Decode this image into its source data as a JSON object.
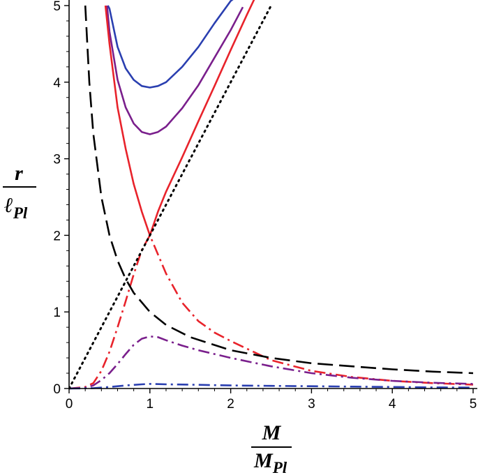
{
  "chart_data": {
    "type": "line",
    "title": "",
    "xlabel": {
      "numerator": "M",
      "denominator_base": "M",
      "denominator_sub": "Pl"
    },
    "ylabel": {
      "numerator": "r",
      "denominator_base": "ℓ",
      "denominator_sub": "Pl"
    },
    "xlim": [
      0,
      5
    ],
    "ylim": [
      0,
      5
    ],
    "x_ticks": [
      "0",
      "1",
      "2",
      "3",
      "4",
      "5"
    ],
    "y_ticks": [
      "0",
      "1",
      "2",
      "3",
      "4",
      "5"
    ],
    "grid": false,
    "legend": "none",
    "series": [
      {
        "style": "solid",
        "color": "#2a3fb0",
        "x": [
          0.48,
          0.5,
          0.6,
          0.7,
          0.8,
          0.9,
          1.0,
          1.1,
          1.2,
          1.4,
          1.6,
          1.8,
          2.0,
          2.05
        ],
        "y": [
          5.0,
          4.96,
          4.46,
          4.18,
          4.03,
          3.95,
          3.93,
          3.95,
          4.0,
          4.2,
          4.46,
          4.77,
          5.06,
          5.1
        ]
      },
      {
        "style": "solid",
        "color": "#7a1f8c",
        "x": [
          0.47,
          0.5,
          0.6,
          0.7,
          0.8,
          0.9,
          1.0,
          1.1,
          1.2,
          1.4,
          1.6,
          1.8,
          2.0,
          2.15
        ],
        "y": [
          5.0,
          4.66,
          4.03,
          3.67,
          3.46,
          3.35,
          3.32,
          3.35,
          3.42,
          3.66,
          3.96,
          4.32,
          4.68,
          4.98
        ]
      },
      {
        "style": "solid",
        "color": "#e8232b",
        "x": [
          0.45,
          0.5,
          0.6,
          0.7,
          0.8,
          0.9,
          1.0,
          1.1,
          1.2,
          1.4,
          1.6,
          1.8,
          2.0,
          2.2,
          2.3
        ],
        "y": [
          5.0,
          4.5,
          3.67,
          3.13,
          2.67,
          2.31,
          2.0,
          2.31,
          2.57,
          3.02,
          3.49,
          3.95,
          4.42,
          4.88,
          5.1
        ]
      },
      {
        "style": "dashdot",
        "color": "#e8232b",
        "x": [
          0.0,
          0.2,
          0.3,
          0.4,
          0.5,
          0.6,
          0.7,
          0.8,
          0.9,
          1.0,
          1.1,
          1.2,
          1.4,
          1.6,
          1.8,
          2.0,
          2.5,
          3.0,
          3.5,
          4.0,
          4.5,
          5.0
        ],
        "y": [
          0.0,
          0.02,
          0.07,
          0.23,
          0.48,
          0.8,
          1.14,
          1.49,
          1.81,
          2.0,
          1.75,
          1.5,
          1.12,
          0.88,
          0.73,
          0.62,
          0.37,
          0.23,
          0.15,
          0.1,
          0.07,
          0.05
        ]
      },
      {
        "style": "dashdot",
        "color": "#7a1f8c",
        "x": [
          0.0,
          0.2,
          0.3,
          0.4,
          0.5,
          0.6,
          0.7,
          0.8,
          0.9,
          1.0,
          1.1,
          1.2,
          1.4,
          1.6,
          1.8,
          2.0,
          2.5,
          3.0,
          3.5,
          4.0,
          4.5,
          5.0
        ],
        "y": [
          0.0,
          0.01,
          0.04,
          0.11,
          0.2,
          0.32,
          0.45,
          0.57,
          0.65,
          0.68,
          0.67,
          0.63,
          0.56,
          0.5,
          0.45,
          0.4,
          0.29,
          0.2,
          0.14,
          0.1,
          0.075,
          0.06
        ]
      },
      {
        "style": "dashdot",
        "color": "#2a3fb0",
        "x": [
          0.0,
          0.3,
          0.5,
          0.7,
          0.9,
          1.0,
          1.2,
          1.5,
          2.0,
          2.5,
          3.0,
          3.5,
          4.0,
          4.5,
          5.0
        ],
        "y": [
          0.0,
          0.005,
          0.02,
          0.04,
          0.055,
          0.06,
          0.055,
          0.05,
          0.04,
          0.035,
          0.03,
          0.025,
          0.02,
          0.015,
          0.012
        ]
      },
      {
        "style": "dashed",
        "color": "#000000",
        "x": [
          0.2,
          0.25,
          0.3,
          0.4,
          0.5,
          0.6,
          0.7,
          0.8,
          1.0,
          1.2,
          1.5,
          2.0,
          2.5,
          3.0,
          3.5,
          4.0,
          4.5,
          5.0
        ],
        "y": [
          5.0,
          4.0,
          3.33,
          2.5,
          2.0,
          1.67,
          1.43,
          1.25,
          1.0,
          0.83,
          0.67,
          0.5,
          0.4,
          0.33,
          0.29,
          0.25,
          0.22,
          0.2
        ]
      },
      {
        "style": "dotted",
        "color": "#000000",
        "x": [
          0.0,
          2.5
        ],
        "y": [
          0.0,
          5.0
        ]
      }
    ]
  }
}
